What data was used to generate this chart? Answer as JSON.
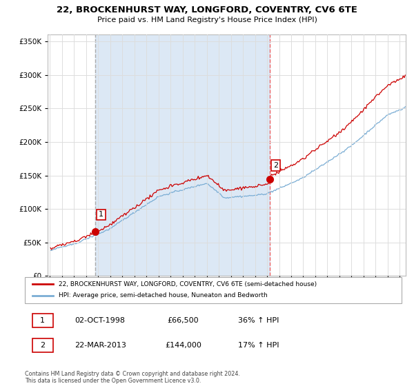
{
  "title": "22, BROCKENHURST WAY, LONGFORD, COVENTRY, CV6 6TE",
  "subtitle": "Price paid vs. HM Land Registry's House Price Index (HPI)",
  "legend_line1": "22, BROCKENHURST WAY, LONGFORD, COVENTRY, CV6 6TE (semi-detached house)",
  "legend_line2": "HPI: Average price, semi-detached house, Nuneaton and Bedworth",
  "footer": "Contains HM Land Registry data © Crown copyright and database right 2024.\nThis data is licensed under the Open Government Licence v3.0.",
  "transaction1_label": "1",
  "transaction1_date": "02-OCT-1998",
  "transaction1_price": "£66,500",
  "transaction1_hpi": "36% ↑ HPI",
  "transaction2_label": "2",
  "transaction2_date": "22-MAR-2013",
  "transaction2_price": "£144,000",
  "transaction2_hpi": "17% ↑ HPI",
  "line_color_red": "#cc0000",
  "line_color_blue": "#7aadd4",
  "vline1_color": "#aaaaaa",
  "vline2_color": "#ee6666",
  "shade_color": "#dce8f5",
  "point1_x": 1998.75,
  "point1_y": 66500,
  "point2_x": 2013.22,
  "point2_y": 144000,
  "ylim": [
    0,
    360000
  ],
  "xlim_start": 1994.8,
  "xlim_end": 2024.5,
  "background_color": "#ffffff",
  "plot_bg_color": "#ffffff",
  "grid_color": "#dddddd"
}
